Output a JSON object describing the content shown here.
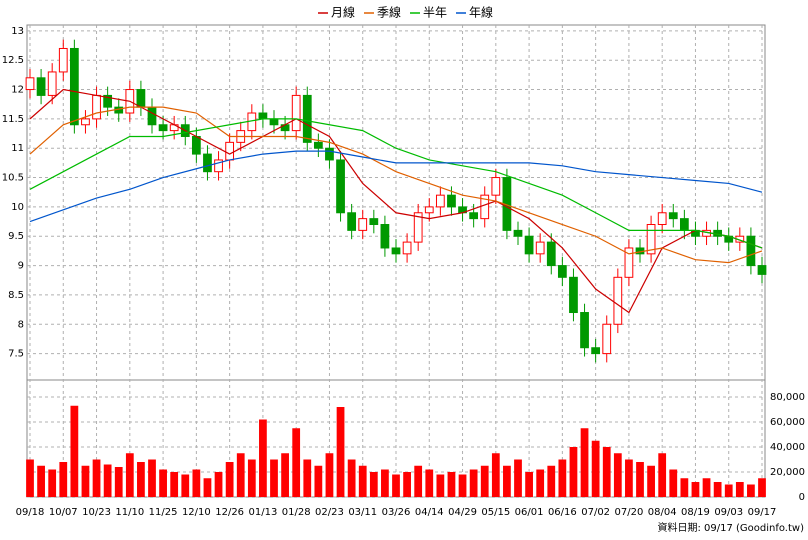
{
  "chart_data": {
    "type": "candlestick",
    "grid": true,
    "xlim": [
      0,
      66
    ],
    "xticks": [
      {
        "value": 0,
        "label": "09/18"
      },
      {
        "value": 3,
        "label": "10/07"
      },
      {
        "value": 6,
        "label": "10/23"
      },
      {
        "value": 9,
        "label": "11/10"
      },
      {
        "value": 12,
        "label": "11/25"
      },
      {
        "value": 15,
        "label": "12/10"
      },
      {
        "value": 18,
        "label": "12/26"
      },
      {
        "value": 21,
        "label": "01/13"
      },
      {
        "value": 24,
        "label": "01/28"
      },
      {
        "value": 27,
        "label": "02/23"
      },
      {
        "value": 30,
        "label": "03/11"
      },
      {
        "value": 33,
        "label": "03/26"
      },
      {
        "value": 36,
        "label": "04/14"
      },
      {
        "value": 39,
        "label": "04/29"
      },
      {
        "value": 42,
        "label": "05/15"
      },
      {
        "value": 45,
        "label": "06/01"
      },
      {
        "value": 48,
        "label": "06/16"
      },
      {
        "value": 51,
        "label": "07/02"
      },
      {
        "value": 54,
        "label": "07/20"
      },
      {
        "value": 57,
        "label": "08/04"
      },
      {
        "value": 60,
        "label": "08/19"
      },
      {
        "value": 63,
        "label": "09/03"
      },
      {
        "value": 66,
        "label": "09/17"
      }
    ],
    "ylim": [
      7.05,
      13.1
    ],
    "yticks": [
      7.5,
      8,
      8.5,
      9,
      9.5,
      10,
      10.5,
      11,
      11.5,
      12,
      12.5,
      13
    ],
    "up_color": "#ff0000",
    "down_color": "#009900",
    "candles": {
      "open": [
        12.0,
        12.2,
        11.9,
        12.3,
        12.7,
        11.4,
        11.5,
        11.9,
        11.7,
        11.6,
        12.0,
        11.7,
        11.4,
        11.3,
        11.4,
        11.2,
        10.9,
        10.6,
        10.8,
        11.1,
        11.3,
        11.6,
        11.5,
        11.4,
        11.3,
        11.9,
        11.1,
        11.0,
        10.8,
        9.9,
        9.6,
        9.8,
        9.7,
        9.3,
        9.2,
        9.4,
        9.9,
        10.0,
        10.2,
        10.0,
        9.9,
        9.8,
        10.2,
        10.5,
        9.6,
        9.5,
        9.2,
        9.4,
        9.0,
        8.8,
        8.2,
        7.6,
        7.5,
        8.0,
        8.8,
        9.3,
        9.2,
        9.7,
        9.9,
        9.8,
        9.6,
        9.5,
        9.6,
        9.5,
        9.4,
        9.5,
        9.0
      ],
      "high": [
        12.35,
        12.35,
        12.45,
        12.85,
        12.85,
        11.65,
        12.05,
        12.05,
        11.85,
        12.15,
        12.15,
        11.85,
        11.55,
        11.55,
        11.55,
        11.35,
        11.05,
        10.95,
        11.25,
        11.45,
        11.75,
        11.75,
        11.65,
        11.55,
        12.05,
        12.05,
        11.25,
        11.15,
        10.95,
        10.05,
        9.95,
        9.95,
        9.85,
        9.45,
        9.55,
        10.05,
        10.15,
        10.35,
        10.35,
        10.15,
        10.05,
        10.35,
        10.65,
        10.65,
        9.75,
        9.65,
        9.55,
        9.55,
        9.15,
        8.95,
        8.35,
        7.75,
        8.15,
        8.95,
        9.45,
        9.45,
        9.85,
        10.05,
        10.05,
        9.95,
        9.75,
        9.75,
        9.75,
        9.65,
        9.65,
        9.65,
        9.15
      ],
      "low": [
        11.85,
        11.75,
        11.75,
        12.15,
        11.25,
        11.25,
        11.35,
        11.55,
        11.45,
        11.45,
        11.55,
        11.25,
        11.15,
        11.15,
        11.05,
        10.75,
        10.45,
        10.45,
        10.65,
        10.95,
        11.15,
        11.35,
        11.25,
        11.15,
        11.15,
        10.95,
        10.85,
        10.65,
        9.75,
        9.45,
        9.45,
        9.55,
        9.15,
        9.05,
        9.05,
        9.25,
        9.75,
        9.85,
        9.85,
        9.75,
        9.65,
        9.65,
        10.05,
        9.45,
        9.35,
        9.05,
        9.05,
        8.85,
        8.65,
        8.05,
        7.45,
        7.35,
        7.35,
        7.85,
        8.65,
        9.05,
        9.05,
        9.55,
        9.65,
        9.45,
        9.35,
        9.35,
        9.35,
        9.25,
        9.25,
        8.85,
        8.7
      ],
      "close": [
        12.2,
        11.9,
        12.3,
        12.7,
        11.4,
        11.5,
        11.9,
        11.7,
        11.6,
        12.0,
        11.7,
        11.4,
        11.3,
        11.4,
        11.2,
        10.9,
        10.6,
        10.8,
        11.1,
        11.3,
        11.6,
        11.5,
        11.4,
        11.3,
        11.9,
        11.1,
        11.0,
        10.8,
        9.9,
        9.6,
        9.8,
        9.7,
        9.3,
        9.2,
        9.4,
        9.9,
        10.0,
        10.2,
        10.0,
        9.9,
        9.8,
        10.2,
        10.5,
        9.6,
        9.5,
        9.2,
        9.4,
        9.0,
        8.8,
        8.2,
        7.6,
        7.5,
        8.0,
        8.8,
        9.3,
        9.2,
        9.7,
        9.9,
        9.8,
        9.6,
        9.5,
        9.6,
        9.5,
        9.4,
        9.5,
        9.0,
        8.85
      ]
    },
    "series": [
      {
        "name": "月線",
        "color": "#cc0000",
        "x": [
          0,
          3,
          6,
          9,
          12,
          15,
          18,
          21,
          24,
          27,
          30,
          33,
          36,
          39,
          42,
          45,
          48,
          51,
          54,
          57,
          60,
          63,
          66
        ],
        "values": [
          11.5,
          12.0,
          11.9,
          11.8,
          11.5,
          11.2,
          10.9,
          11.2,
          11.5,
          11.2,
          10.4,
          9.9,
          9.8,
          9.9,
          10.1,
          9.8,
          9.3,
          8.6,
          8.2,
          9.3,
          9.6,
          9.5,
          9.3
        ]
      },
      {
        "name": "季線",
        "color": "#e06000",
        "x": [
          0,
          3,
          6,
          9,
          12,
          15,
          18,
          21,
          24,
          27,
          30,
          33,
          36,
          39,
          42,
          45,
          48,
          51,
          54,
          57,
          60,
          63,
          66
        ],
        "values": [
          10.9,
          11.4,
          11.6,
          11.7,
          11.7,
          11.6,
          11.2,
          11.2,
          11.2,
          11.1,
          10.9,
          10.6,
          10.4,
          10.2,
          10.1,
          9.9,
          9.7,
          9.5,
          9.2,
          9.3,
          9.1,
          9.05,
          9.25
        ]
      },
      {
        "name": "半年",
        "color": "#00bb00",
        "x": [
          0,
          3,
          6,
          9,
          12,
          15,
          18,
          21,
          24,
          27,
          30,
          33,
          36,
          39,
          42,
          45,
          48,
          51,
          54,
          57,
          60,
          63,
          66
        ],
        "values": [
          10.3,
          10.6,
          10.9,
          11.2,
          11.2,
          11.3,
          11.4,
          11.5,
          11.5,
          11.4,
          11.3,
          11.0,
          10.8,
          10.7,
          10.6,
          10.4,
          10.2,
          9.9,
          9.6,
          9.6,
          9.6,
          9.5,
          9.3
        ]
      },
      {
        "name": "年線",
        "color": "#0055cc",
        "x": [
          0,
          3,
          6,
          9,
          12,
          15,
          18,
          21,
          24,
          27,
          30,
          33,
          36,
          39,
          42,
          45,
          48,
          51,
          54,
          57,
          60,
          63,
          66
        ],
        "values": [
          9.75,
          9.95,
          10.15,
          10.3,
          10.5,
          10.65,
          10.8,
          10.9,
          10.95,
          10.95,
          10.85,
          10.75,
          10.75,
          10.75,
          10.75,
          10.75,
          10.7,
          10.6,
          10.55,
          10.5,
          10.45,
          10.4,
          10.25
        ]
      }
    ],
    "volume": {
      "color": "#ff0000",
      "ylim": [
        0,
        93600
      ],
      "yticks": [
        0,
        {
          "value": 20000,
          "label": "20,000"
        },
        {
          "value": 40000,
          "label": "40,000"
        },
        {
          "value": 60000,
          "label": "60,000"
        },
        {
          "value": 80000,
          "label": "80,000"
        }
      ],
      "values": [
        30000,
        25000,
        22000,
        28000,
        73000,
        25000,
        30000,
        26000,
        24000,
        35000,
        28000,
        30000,
        22000,
        20000,
        18000,
        22000,
        15000,
        20000,
        28000,
        35000,
        30000,
        62000,
        30000,
        35000,
        55000,
        30000,
        25000,
        35000,
        72000,
        30000,
        25000,
        20000,
        22000,
        18000,
        20000,
        25000,
        22000,
        18000,
        20000,
        18000,
        22000,
        25000,
        35000,
        25000,
        30000,
        20000,
        22000,
        25000,
        30000,
        40000,
        55000,
        45000,
        40000,
        35000,
        30000,
        28000,
        25000,
        35000,
        22000,
        15000,
        12000,
        15000,
        12000,
        10000,
        12000,
        10000,
        15000
      ]
    },
    "footer": "資料日期: 09/17  (Goodinfo.tw)"
  }
}
